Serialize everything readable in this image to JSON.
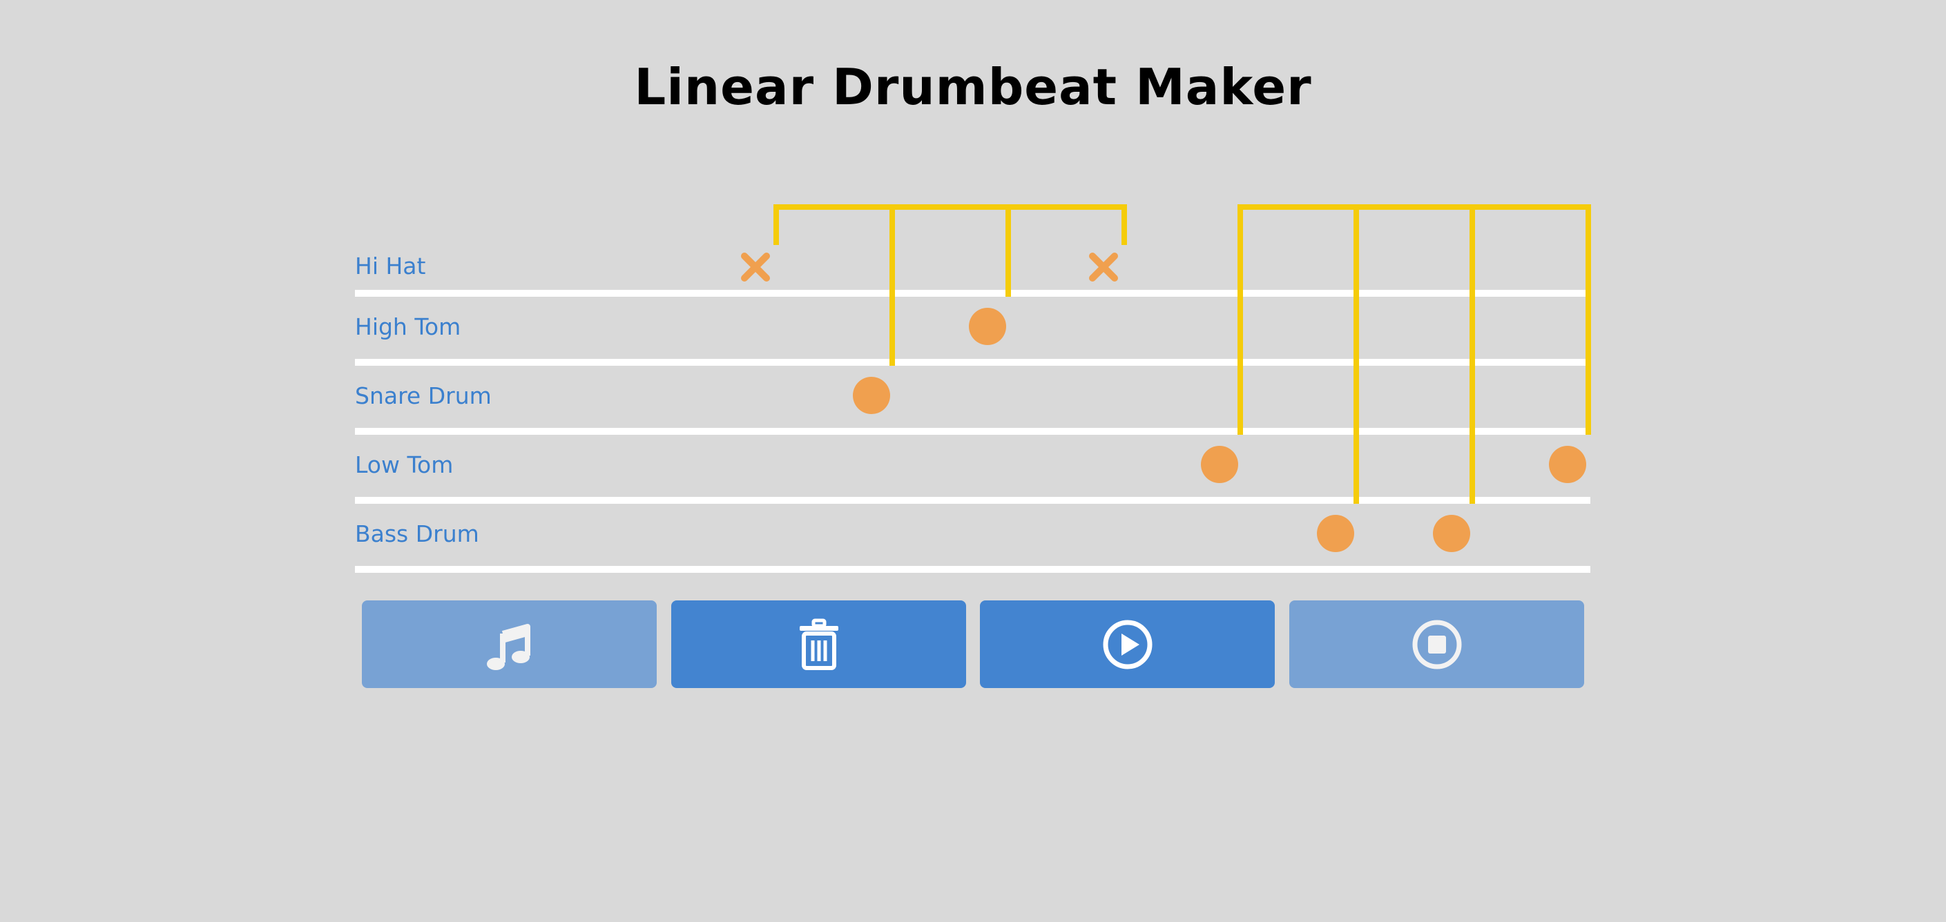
{
  "title": "Linear Drumbeat Maker",
  "colors": {
    "background": "#d9d9d9",
    "label": "#3b80ce",
    "staff_line": "#ffffff",
    "note": "#f0a04f",
    "beam": "#f5cc0a",
    "button_active": "#4384d0",
    "button_inactive": "#78a2d4"
  },
  "instruments": [
    {
      "id": "hi-hat",
      "label": "Hi Hat"
    },
    {
      "id": "high-tom",
      "label": "High Tom"
    },
    {
      "id": "snare-drum",
      "label": "Snare Drum"
    },
    {
      "id": "low-tom",
      "label": "Low Tom"
    },
    {
      "id": "bass-drum",
      "label": "Bass Drum"
    }
  ],
  "beat_groups": [
    {
      "beat": 2,
      "notes": [
        {
          "step": 1,
          "instrument": "hi-hat",
          "shape": "x"
        },
        {
          "step": 2,
          "instrument": "snare-drum",
          "shape": "circle"
        },
        {
          "step": 3,
          "instrument": "high-tom",
          "shape": "circle"
        },
        {
          "step": 4,
          "instrument": "hi-hat",
          "shape": "x"
        }
      ]
    },
    {
      "beat": 3,
      "notes": [
        {
          "step": 1,
          "instrument": "low-tom",
          "shape": "circle"
        },
        {
          "step": 2,
          "instrument": "bass-drum",
          "shape": "circle"
        },
        {
          "step": 3,
          "instrument": "bass-drum",
          "shape": "circle"
        },
        {
          "step": 4,
          "instrument": "low-tom",
          "shape": "circle"
        }
      ]
    }
  ],
  "buttons": [
    {
      "id": "notes",
      "icon": "music-note-icon",
      "state": "inactive"
    },
    {
      "id": "clear",
      "icon": "trash-icon",
      "state": "active"
    },
    {
      "id": "play",
      "icon": "play-circle-icon",
      "state": "active"
    },
    {
      "id": "stop",
      "icon": "stop-circle-icon",
      "state": "inactive"
    }
  ]
}
